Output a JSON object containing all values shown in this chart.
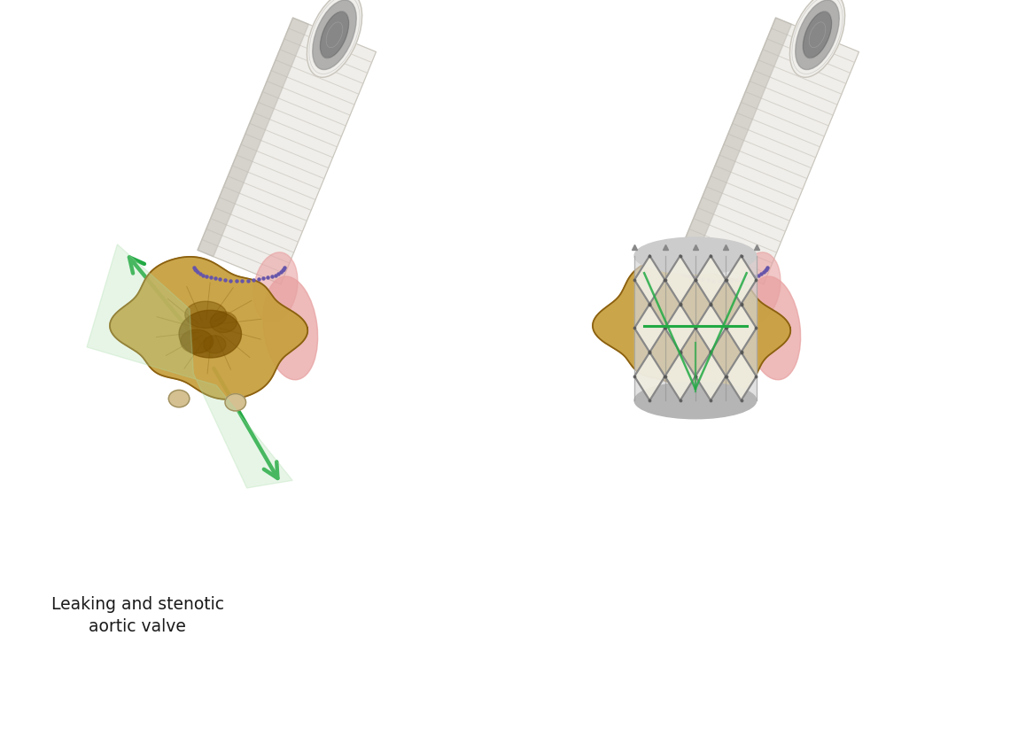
{
  "background_color": "#ffffff",
  "label_text_line1": "Leaking and stenotic",
  "label_text_line2": "aortic valve",
  "label_fontsize": 13.5,
  "label_color": "#1a1a1a",
  "fig_width": 11.4,
  "fig_height": 8.4,
  "graft_color": "#f0eeea",
  "graft_texture_color": "#d0cdc5",
  "graft_shade_color": "#c0bdb5",
  "graft_outline_color": "#c8c5bc",
  "valve_gold_color": "#c8a040",
  "valve_dark_color": "#7a5000",
  "valve_mid_color": "#a07820",
  "valve_outline_color": "#8b6010",
  "green_color": "#22aa44",
  "green_glow_color": "#aaddaa",
  "stent_body_color": "#d5d5d5",
  "stent_frame_color": "#888888",
  "stent_dark_color": "#666666",
  "stent_leaflet_color": "#f0ede0",
  "suture_color": "#6655aa",
  "pink_color": "#e8a0a0",
  "cream_color": "#d4c090",
  "tube_inner_color": "#909090",
  "tube_inner_dark": "#606060"
}
